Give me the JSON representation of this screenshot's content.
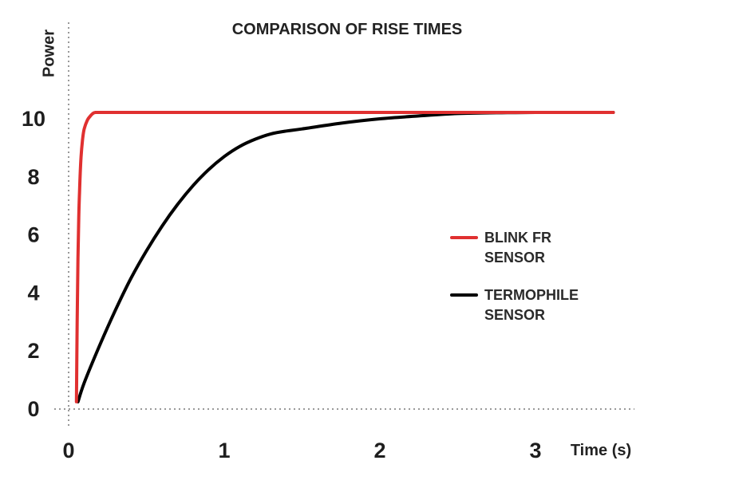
{
  "chart_data": {
    "type": "line",
    "title": "COMPARISON OF RISE TIMES",
    "xlabel": "Time (s)",
    "ylabel": "Power",
    "xlim": [
      0,
      3.6
    ],
    "ylim": [
      0,
      11
    ],
    "xticks": [
      0,
      1,
      2,
      3
    ],
    "xtick_labels": [
      "0",
      "1",
      "2",
      "3"
    ],
    "yticks": [
      0,
      2,
      4,
      6,
      8,
      10
    ],
    "ytick_labels": [
      "0",
      "2",
      "4",
      "6",
      "8",
      "10"
    ],
    "grid": false,
    "legend": "right",
    "series": [
      {
        "name": "BLINK FR SENSOR",
        "color": "#e03030",
        "x": [
          0.05,
          0.055,
          0.06,
          0.065,
          0.07,
          0.08,
          0.09,
          0.1,
          0.12,
          0.14,
          0.16,
          0.18,
          0.2,
          0.5,
          1.0,
          1.5,
          2.0,
          2.5,
          3.0,
          3.5
        ],
        "y": [
          0.25,
          3.0,
          5.2,
          6.6,
          7.5,
          8.7,
          9.3,
          9.65,
          9.95,
          10.1,
          10.2,
          10.22,
          10.22,
          10.22,
          10.22,
          10.22,
          10.22,
          10.22,
          10.22,
          10.22
        ]
      },
      {
        "name": "TERMOPHILE SENSOR",
        "color": "#000000",
        "x": [
          0.06,
          0.1,
          0.2,
          0.3,
          0.4,
          0.5,
          0.6,
          0.7,
          0.8,
          0.9,
          1.0,
          1.1,
          1.2,
          1.3,
          1.4,
          1.5,
          1.75,
          2.0,
          2.25,
          2.5,
          2.75,
          3.0,
          3.25,
          3.5
        ],
        "y": [
          0.25,
          0.9,
          2.2,
          3.4,
          4.5,
          5.45,
          6.3,
          7.05,
          7.7,
          8.25,
          8.7,
          9.05,
          9.3,
          9.48,
          9.58,
          9.65,
          9.85,
          10.0,
          10.1,
          10.18,
          10.21,
          10.22,
          10.22,
          10.22
        ]
      }
    ]
  }
}
